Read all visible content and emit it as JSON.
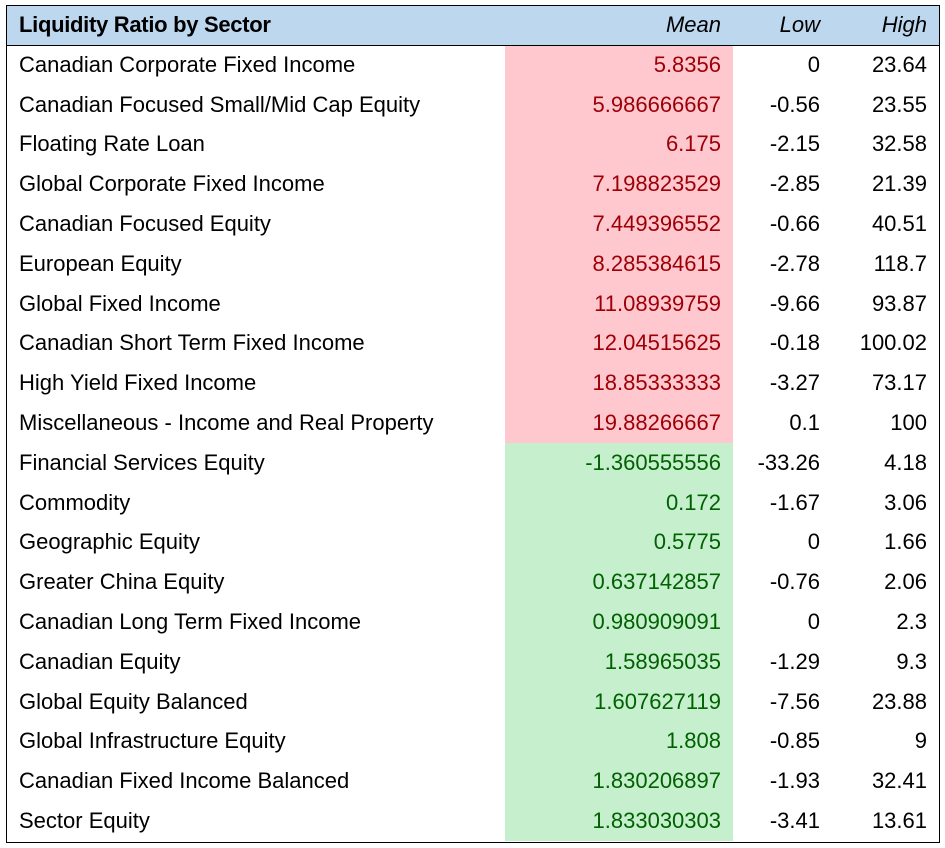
{
  "table": {
    "title": "Liquidity Ratio by Sector",
    "columns": [
      "Mean",
      "Low",
      "High"
    ],
    "highlight_colors": {
      "red_fill": "#ffc7ce",
      "red_text": "#9c0006",
      "green_fill": "#c6efce",
      "green_text": "#006100",
      "header_fill": "#bdd7ee"
    },
    "rows": [
      {
        "sector": "Canadian Corporate Fixed Income",
        "mean": "5.8356",
        "low": "0",
        "high": "23.64",
        "highlight": "red"
      },
      {
        "sector": "Canadian Focused Small/Mid Cap Equity",
        "mean": "5.986666667",
        "low": "-0.56",
        "high": "23.55",
        "highlight": "red"
      },
      {
        "sector": "Floating Rate Loan",
        "mean": "6.175",
        "low": "-2.15",
        "high": "32.58",
        "highlight": "red"
      },
      {
        "sector": "Global Corporate Fixed Income",
        "mean": "7.198823529",
        "low": "-2.85",
        "high": "21.39",
        "highlight": "red"
      },
      {
        "sector": "Canadian Focused Equity",
        "mean": "7.449396552",
        "low": "-0.66",
        "high": "40.51",
        "highlight": "red"
      },
      {
        "sector": "European Equity",
        "mean": "8.285384615",
        "low": "-2.78",
        "high": "118.7",
        "highlight": "red"
      },
      {
        "sector": "Global Fixed Income",
        "mean": "11.08939759",
        "low": "-9.66",
        "high": "93.87",
        "highlight": "red"
      },
      {
        "sector": "Canadian Short Term Fixed Income",
        "mean": "12.04515625",
        "low": "-0.18",
        "high": "100.02",
        "highlight": "red"
      },
      {
        "sector": "High Yield Fixed Income",
        "mean": "18.85333333",
        "low": "-3.27",
        "high": "73.17",
        "highlight": "red"
      },
      {
        "sector": "Miscellaneous - Income and Real Property",
        "mean": "19.88266667",
        "low": "0.1",
        "high": "100",
        "highlight": "red"
      },
      {
        "sector": "Financial Services Equity",
        "mean": "-1.360555556",
        "low": "-33.26",
        "high": "4.18",
        "highlight": "green"
      },
      {
        "sector": "Commodity",
        "mean": "0.172",
        "low": "-1.67",
        "high": "3.06",
        "highlight": "green"
      },
      {
        "sector": "Geographic Equity",
        "mean": "0.5775",
        "low": "0",
        "high": "1.66",
        "highlight": "green"
      },
      {
        "sector": "Greater China Equity",
        "mean": "0.637142857",
        "low": "-0.76",
        "high": "2.06",
        "highlight": "green"
      },
      {
        "sector": "Canadian Long Term Fixed Income",
        "mean": "0.980909091",
        "low": "0",
        "high": "2.3",
        "highlight": "green"
      },
      {
        "sector": "Canadian Equity",
        "mean": "1.58965035",
        "low": "-1.29",
        "high": "9.3",
        "highlight": "green"
      },
      {
        "sector": "Global Equity Balanced",
        "mean": "1.607627119",
        "low": "-7.56",
        "high": "23.88",
        "highlight": "green"
      },
      {
        "sector": "Global Infrastructure Equity",
        "mean": "1.808",
        "low": "-0.85",
        "high": "9",
        "highlight": "green"
      },
      {
        "sector": "Canadian Fixed Income Balanced",
        "mean": "1.830206897",
        "low": "-1.93",
        "high": "32.41",
        "highlight": "green"
      },
      {
        "sector": "Sector Equity",
        "mean": "1.833030303",
        "low": "-3.41",
        "high": "13.61",
        "highlight": "green"
      }
    ]
  }
}
